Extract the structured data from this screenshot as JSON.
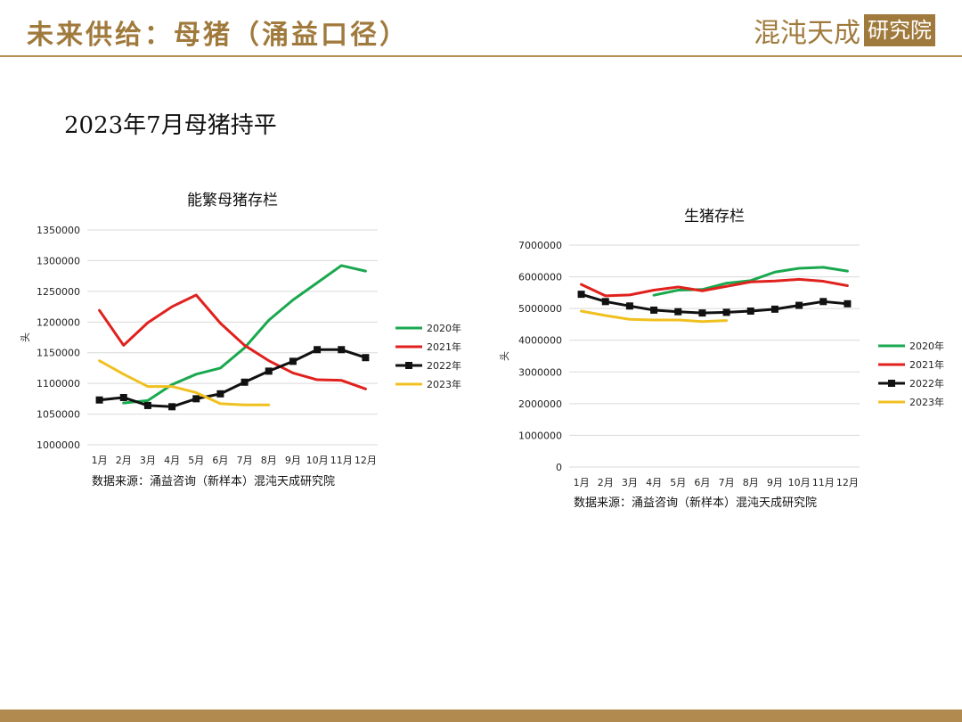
{
  "header": {
    "title": "未来供给：母猪（涌益口径）",
    "logo_main": "混沌天成",
    "logo_box": "研究院"
  },
  "subtitle": "2023年7月母猪持平",
  "colors": {
    "2020": "#1aa84f",
    "2021": "#e0211d",
    "2022": "#111111",
    "2023": "#f0c020",
    "accent": "#a07a3c"
  },
  "chart_data": [
    {
      "type": "line",
      "title": "能繁母猪存栏",
      "ylabel": "头",
      "source": "数据来源：涌益咨询（新样本）混沌天成研究院",
      "categories": [
        "1月",
        "2月",
        "3月",
        "4月",
        "5月",
        "6月",
        "7月",
        "8月",
        "9月",
        "10月",
        "11月",
        "12月"
      ],
      "ylim": [
        1000000,
        1350000
      ],
      "yticks": [
        1000000,
        1050000,
        1100000,
        1150000,
        1200000,
        1250000,
        1300000,
        1350000
      ],
      "ytick_labels": [
        "1000000",
        "1050000",
        "1100000",
        "1150000",
        "1200000",
        "1250000",
        "1300000",
        "1350000"
      ],
      "grid": true,
      "legend": "right",
      "series": [
        {
          "name": "2020年",
          "color_key": "2020",
          "marker": false,
          "values": [
            null,
            1068000,
            1072000,
            1098000,
            1115000,
            1125000,
            1158000,
            1203000,
            1236000,
            1264000,
            1292000,
            1283000
          ]
        },
        {
          "name": "2021年",
          "color_key": "2021",
          "marker": false,
          "values": [
            1219000,
            1162000,
            1199000,
            1225000,
            1244000,
            1198000,
            1162000,
            1137000,
            1117000,
            1106000,
            1105000,
            1091000
          ]
        },
        {
          "name": "2022年",
          "color_key": "2022",
          "marker": true,
          "values": [
            1073000,
            1077000,
            1064000,
            1062000,
            1075000,
            1083000,
            1102000,
            1120000,
            1136000,
            1155000,
            1155000,
            1142000
          ]
        },
        {
          "name": "2023年",
          "color_key": "2023",
          "marker": false,
          "values": [
            1137000,
            1115000,
            1095000,
            1095000,
            1085000,
            1067000,
            1065000,
            1065000,
            null,
            null,
            null,
            null
          ]
        }
      ]
    },
    {
      "type": "line",
      "title": "生猪存栏",
      "ylabel": "头",
      "source": "数据来源：涌益咨询（新样本）混沌天成研究院",
      "categories": [
        "1月",
        "2月",
        "3月",
        "4月",
        "5月",
        "6月",
        "7月",
        "8月",
        "9月",
        "10月",
        "11月",
        "12月"
      ],
      "ylim": [
        0,
        7000000
      ],
      "yticks": [
        0,
        1000000,
        2000000,
        3000000,
        4000000,
        5000000,
        6000000,
        7000000
      ],
      "ytick_labels": [
        "0",
        "1000000",
        "2000000",
        "3000000",
        "4000000",
        "5000000",
        "6000000",
        "7000000"
      ],
      "grid": true,
      "legend": "right",
      "series": [
        {
          "name": "2020年",
          "color_key": "2020",
          "marker": false,
          "values": [
            null,
            null,
            null,
            5420000,
            5580000,
            5600000,
            5800000,
            5880000,
            6150000,
            6270000,
            6300000,
            6180000
          ]
        },
        {
          "name": "2021年",
          "color_key": "2021",
          "marker": false,
          "values": [
            5760000,
            5400000,
            5430000,
            5580000,
            5680000,
            5560000,
            5700000,
            5840000,
            5870000,
            5920000,
            5860000,
            5720000
          ]
        },
        {
          "name": "2022年",
          "color_key": "2022",
          "marker": true,
          "values": [
            5450000,
            5220000,
            5080000,
            4950000,
            4900000,
            4860000,
            4880000,
            4920000,
            4980000,
            5100000,
            5220000,
            5150000
          ]
        },
        {
          "name": "2023年",
          "color_key": "2023",
          "marker": false,
          "values": [
            4920000,
            4780000,
            4660000,
            4640000,
            4640000,
            4590000,
            4620000,
            null,
            null,
            null,
            null,
            null
          ]
        }
      ]
    }
  ]
}
